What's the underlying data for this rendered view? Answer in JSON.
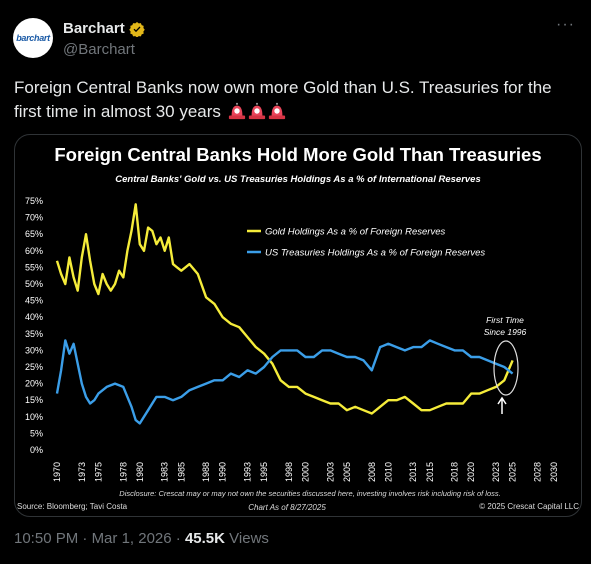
{
  "author": {
    "name": "Barchart",
    "handle": "@Barchart",
    "avatar_text": "barchart",
    "verified_color": "#e2b719"
  },
  "tweet": {
    "text": "Foreign Central Banks now own more Gold than U.S. Treasuries for the first time in almost 30 years",
    "emoji": "siren-icon"
  },
  "meta": {
    "time": "10:50 PM",
    "separator": "·",
    "date": "Mar 1, 2026",
    "views_count": "45.5K",
    "views_label": "Views"
  },
  "chart_data": {
    "type": "line",
    "title": "Foreign Central Banks Hold More Gold Than Treasuries",
    "subtitle": "Central Banks' Gold vs. US Treasuries Holdings As a % of International Reserves",
    "ylim": [
      0,
      75
    ],
    "xlim": [
      1970,
      2030
    ],
    "y_ticks": [
      "75%",
      "70%",
      "65%",
      "60%",
      "55%",
      "50%",
      "45%",
      "40%",
      "35%",
      "30%",
      "25%",
      "20%",
      "15%",
      "10%",
      "5%",
      "0%"
    ],
    "x_ticks": [
      "1970",
      "1973",
      "1975",
      "1978",
      "1980",
      "1983",
      "1985",
      "1988",
      "1990",
      "1993",
      "1995",
      "1998",
      "2000",
      "2003",
      "2005",
      "2008",
      "2010",
      "2013",
      "2015",
      "2018",
      "2020",
      "2023",
      "2025",
      "2028",
      "2030"
    ],
    "annotation": "First Time\nSince 1996",
    "disclosure": "Disclosure: Crescat may or may not own the securities discussed here, investing involves risk including risk of loss.",
    "source": "Source: Bloomberg; Tavi Costa",
    "chart_as_of": "Chart As of 8/27/2025",
    "copyright": "© 2025 Crescat Capital LLC",
    "series": [
      {
        "name": "Gold Holdings As a % of Foreign Reserves",
        "color": "#f5ec3a",
        "x": [
          1970,
          1970.5,
          1971,
          1971.5,
          1972,
          1972.5,
          1973,
          1973.5,
          1974,
          1974.5,
          1975,
          1975.5,
          1976,
          1976.5,
          1977,
          1977.5,
          1978,
          1978.5,
          1979,
          1979.5,
          1980,
          1980.5,
          1981,
          1981.5,
          1982,
          1982.5,
          1983,
          1983.5,
          1984,
          1984.5,
          1985,
          1986,
          1987,
          1988,
          1989,
          1990,
          1991,
          1992,
          1993,
          1994,
          1995,
          1996,
          1997,
          1998,
          1999,
          2000,
          2001,
          2002,
          2003,
          2004,
          2005,
          2006,
          2007,
          2008,
          2009,
          2010,
          2011,
          2012,
          2013,
          2014,
          2015,
          2016,
          2017,
          2018,
          2019,
          2020,
          2021,
          2022,
          2023,
          2024,
          2025
        ],
        "y": [
          57,
          53,
          50,
          58,
          52,
          48,
          58,
          65,
          57,
          50,
          47,
          53,
          50,
          48,
          50,
          54,
          52,
          60,
          66,
          74,
          62,
          60,
          67,
          66,
          62,
          64,
          60,
          64,
          56,
          55,
          54,
          56,
          53,
          46,
          44,
          40,
          38,
          37,
          34,
          31,
          29,
          26,
          21,
          19,
          19,
          17,
          16,
          15,
          14,
          14,
          12,
          13,
          12,
          11,
          13,
          15,
          15,
          16,
          14,
          12,
          12,
          13,
          14,
          14,
          14,
          17,
          17,
          18,
          19,
          21,
          27
        ]
      },
      {
        "name": "US Treasuries Holdings As a % of Foreign Reserves",
        "color": "#3b9ee8",
        "x": [
          1970,
          1970.5,
          1971,
          1971.5,
          1972,
          1972.5,
          1973,
          1973.5,
          1974,
          1974.5,
          1975,
          1976,
          1977,
          1978,
          1978.5,
          1979,
          1979.5,
          1980,
          1981,
          1982,
          1983,
          1984,
          1985,
          1986,
          1987,
          1988,
          1989,
          1990,
          1991,
          1992,
          1993,
          1994,
          1995,
          1996,
          1997,
          1998,
          1999,
          2000,
          2001,
          2002,
          2003,
          2004,
          2005,
          2006,
          2007,
          2008,
          2009,
          2010,
          2011,
          2012,
          2013,
          2014,
          2015,
          2016,
          2017,
          2018,
          2019,
          2020,
          2021,
          2022,
          2023,
          2024,
          2025
        ],
        "y": [
          17,
          24,
          33,
          29,
          32,
          26,
          20,
          16,
          14,
          15,
          17,
          19,
          20,
          19,
          16,
          13,
          9,
          8,
          12,
          16,
          16,
          15,
          16,
          18,
          19,
          20,
          21,
          21,
          23,
          22,
          24,
          23,
          25,
          28,
          30,
          30,
          30,
          28,
          28,
          30,
          30,
          29,
          28,
          28,
          27,
          24,
          31,
          32,
          31,
          30,
          31,
          31,
          33,
          32,
          31,
          30,
          30,
          28,
          28,
          27,
          26,
          25,
          23
        ]
      }
    ]
  }
}
